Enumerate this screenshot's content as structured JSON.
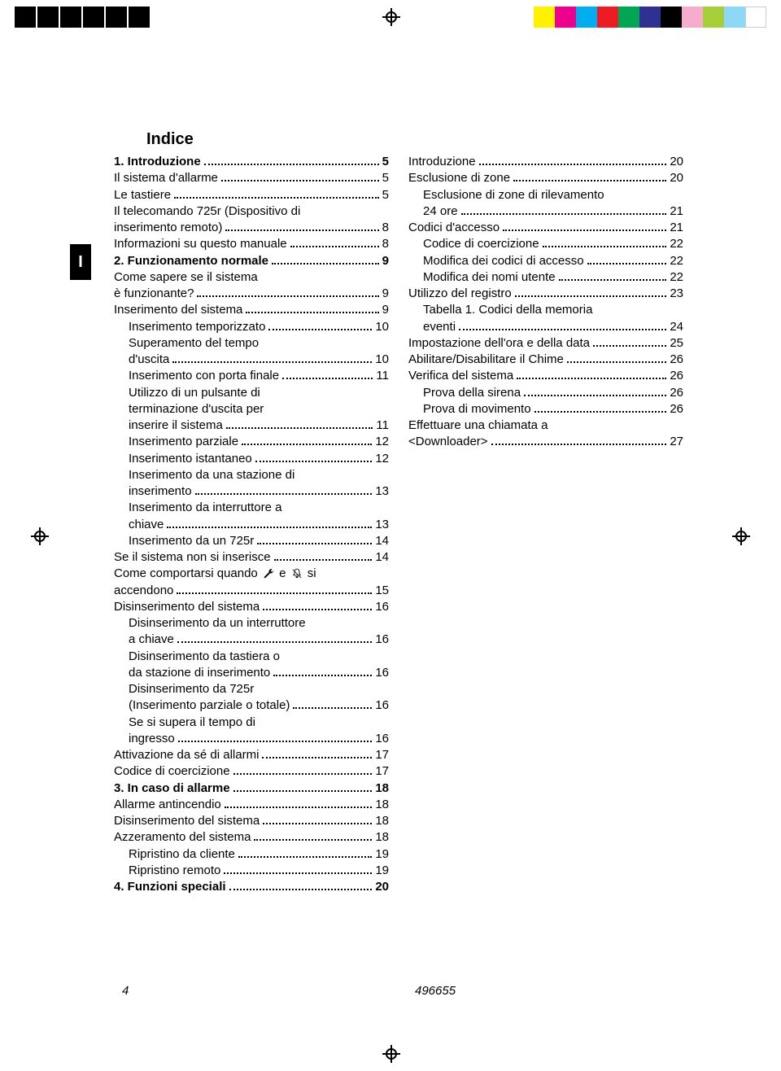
{
  "colorbar_left": [
    "#000000",
    "#000000",
    "#000000",
    "#000000",
    "#000000",
    "#000000"
  ],
  "colorbar_right": [
    "#fff200",
    "#ec008c",
    "#00aeef",
    "#ed1c24",
    "#00a651",
    "#2e3192",
    "#000000",
    "#f6adcd",
    "#a6ce39",
    "#8dd7f7",
    "#ffffff"
  ],
  "tab_label": "I",
  "title": "Indice",
  "footer": {
    "page_number": "4",
    "doc_number": "496655"
  },
  "col1": [
    {
      "text": "1. Introduzione",
      "page": "5",
      "indent": 0,
      "bold": true
    },
    {
      "text": "Il sistema d'allarme",
      "page": "5",
      "indent": 0
    },
    {
      "text": "Le tastiere",
      "page": "5",
      "indent": 0
    },
    {
      "text": "Il telecomando 725r (Dispositivo di",
      "cont": "inserimento remoto)",
      "page": "8",
      "indent": 0
    },
    {
      "text": "Informazioni su questo manuale",
      "page": "8",
      "indent": 0
    },
    {
      "text": "2. Funzionamento normale",
      "page": "9",
      "indent": 0,
      "bold": true
    },
    {
      "text": "Come sapere se il sistema",
      "cont": "è funzionante?",
      "page": "9",
      "indent": 0
    },
    {
      "text": "Inserimento del sistema",
      "page": "9",
      "indent": 0
    },
    {
      "text": "Inserimento temporizzato",
      "page": "10",
      "indent": 1
    },
    {
      "text": "Superamento del tempo",
      "cont": "d'uscita",
      "page": "10",
      "indent": 1
    },
    {
      "text": "Inserimento con porta finale",
      "page": "11",
      "indent": 1
    },
    {
      "text": "Utilizzo di un pulsante di",
      "cont": "terminazione d'uscita per",
      "cont2": "inserire il sistema",
      "page": "11",
      "indent": 1
    },
    {
      "text": "Inserimento parziale",
      "page": "12",
      "indent": 1
    },
    {
      "text": "Inserimento istantaneo",
      "page": "12",
      "indent": 1
    },
    {
      "text": "Inserimento da una stazione di",
      "cont": "inserimento",
      "page": "13",
      "indent": 1
    },
    {
      "text": "Inserimento da interruttore a",
      "cont": "chiave",
      "page": "13",
      "indent": 1
    },
    {
      "text": "Inserimento da un 725r",
      "page": "14",
      "indent": 1
    },
    {
      "text": "Se il sistema non si inserisce",
      "page": "14",
      "indent": 0
    },
    {
      "text": "Come comportarsi quando",
      "icons": true,
      "cont": "accendono",
      "page": "15",
      "indent": 0
    },
    {
      "text": "Disinserimento del sistema",
      "page": "16",
      "indent": 0
    },
    {
      "text": "Disinserimento da un interruttore",
      "cont": "a chiave",
      "page": "16",
      "indent": 1
    },
    {
      "text": "Disinserimento da tastiera o",
      "cont": "da stazione di inserimento",
      "page": "16",
      "indent": 1
    },
    {
      "text": "Disinserimento da 725r",
      "cont": "(Inserimento parziale o totale)",
      "page": "16",
      "indent": 1
    },
    {
      "text": "Se si supera il tempo di",
      "cont": "ingresso",
      "page": "16",
      "indent": 1
    },
    {
      "text": "Attivazione da sé di allarmi",
      "page": "17",
      "indent": 0
    },
    {
      "text": "Codice di coercizione",
      "page": "17",
      "indent": 0
    },
    {
      "text": "3. In caso di allarme",
      "page": "18",
      "indent": 0,
      "bold": true
    },
    {
      "text": "Allarme antincendio",
      "page": "18",
      "indent": 0
    },
    {
      "text": "Disinserimento del sistema",
      "page": "18",
      "indent": 0
    },
    {
      "text": "Azzeramento del sistema",
      "page": "18",
      "indent": 0
    },
    {
      "text": "Ripristino da cliente",
      "page": "19",
      "indent": 1
    },
    {
      "text": "Ripristino remoto",
      "page": "19",
      "indent": 1
    },
    {
      "text": "4. Funzioni speciali",
      "page": "20",
      "indent": 0,
      "bold": true
    }
  ],
  "col2": [
    {
      "text": "Introduzione",
      "page": "20",
      "indent": 0
    },
    {
      "text": "Esclusione di zone",
      "page": "20",
      "indent": 0
    },
    {
      "text": "Esclusione di zone di rilevamento",
      "cont": "24 ore",
      "page": "21",
      "indent": 1
    },
    {
      "text": "Codici d'accesso",
      "page": "21",
      "indent": 0
    },
    {
      "text": "Codice di coercizione",
      "page": "22",
      "indent": 1
    },
    {
      "text": "Modifica dei codici di accesso",
      "page": "22",
      "indent": 1
    },
    {
      "text": "Modifica dei nomi utente",
      "page": "22",
      "indent": 1
    },
    {
      "text": "Utilizzo del registro",
      "page": "23",
      "indent": 0
    },
    {
      "text": "Tabella 1. Codici della memoria",
      "cont": "eventi",
      "page": "24",
      "indent": 1
    },
    {
      "text": "Impostazione dell'ora e della data",
      "page": "25",
      "indent": 0
    },
    {
      "text": "Abilitare/Disabilitare il Chime",
      "page": "26",
      "indent": 0
    },
    {
      "text": "Verifica del sistema",
      "page": "26",
      "indent": 0
    },
    {
      "text": "Prova della sirena",
      "page": "26",
      "indent": 1
    },
    {
      "text": "Prova di movimento",
      "page": "26",
      "indent": 1
    },
    {
      "text": "Effettuare una chiamata a",
      "cont": "<Downloader>",
      "page": "27",
      "indent": 0
    }
  ],
  "icon_join_text": " e ",
  "icon_suffix_text": " si"
}
